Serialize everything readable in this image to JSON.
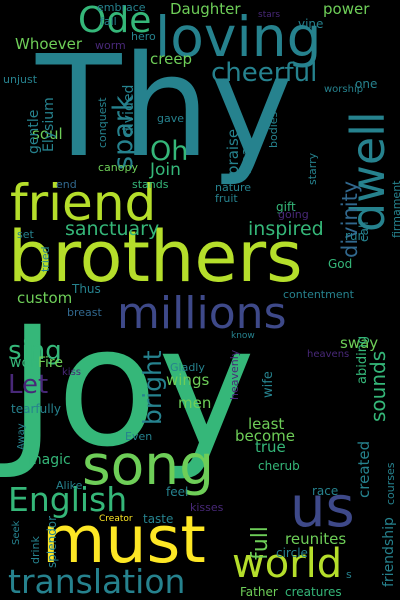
{
  "background": "#000000",
  "palette": [
    "#fde725",
    "#b5de2b",
    "#6ece58",
    "#35b779",
    "#1f9e89",
    "#26828e",
    "#31688e",
    "#3e4989",
    "#482878",
    "#440154"
  ],
  "words": [
    {
      "text": "Joy",
      "color": "#35b779"
    },
    {
      "text": "Thy",
      "color": "#26828e"
    },
    {
      "text": "brothers",
      "color": "#b5de2b"
    },
    {
      "text": "loving",
      "color": "#26828e"
    },
    {
      "text": "friend",
      "color": "#b5de2b"
    },
    {
      "text": "must",
      "color": "#fde725"
    },
    {
      "text": "us",
      "color": "#3e4989"
    },
    {
      "text": "song",
      "color": "#6ece58"
    },
    {
      "text": "world",
      "color": "#b5de2b"
    },
    {
      "text": "millions",
      "color": "#3e4989"
    },
    {
      "text": "translation",
      "color": "#26828e"
    },
    {
      "text": "English",
      "color": "#35b779"
    },
    {
      "text": "dwell",
      "color": "#26828e"
    },
    {
      "text": "Ode",
      "color": "#35b779"
    },
    {
      "text": "cheerful",
      "color": "#26828e"
    },
    {
      "text": "spark",
      "color": "#26828e"
    },
    {
      "text": "Oh",
      "color": "#35b779"
    },
    {
      "text": "divinity",
      "color": "#31688e"
    },
    {
      "text": "sanctuary",
      "color": "#35b779"
    },
    {
      "text": "inspired",
      "color": "#35b779"
    },
    {
      "text": "sing",
      "color": "#35b779"
    },
    {
      "text": "Let",
      "color": "#482878"
    },
    {
      "text": "bright",
      "color": "#26828e"
    },
    {
      "text": "sounds",
      "color": "#35b779"
    },
    {
      "text": "full",
      "color": "#6ece58"
    },
    {
      "text": "Daughter",
      "color": "#6ece58"
    },
    {
      "text": "power",
      "color": "#6ece58"
    },
    {
      "text": "Whoever",
      "color": "#6ece58"
    },
    {
      "text": "soul",
      "color": "#6ece58"
    },
    {
      "text": "creep",
      "color": "#6ece58"
    },
    {
      "text": "praise",
      "color": "#26828e"
    },
    {
      "text": "Join",
      "color": "#35b779"
    },
    {
      "text": "custom",
      "color": "#6ece58"
    },
    {
      "text": "sway",
      "color": "#6ece58"
    },
    {
      "text": "wings",
      "color": "#6ece58"
    },
    {
      "text": "men",
      "color": "#6ece58"
    },
    {
      "text": "least",
      "color": "#6ece58"
    },
    {
      "text": "true",
      "color": "#35b779"
    },
    {
      "text": "become",
      "color": "#6ece58"
    },
    {
      "text": "reunites",
      "color": "#6ece58"
    },
    {
      "text": "magic",
      "color": "#35b779"
    },
    {
      "text": "Fire",
      "color": "#6ece58"
    },
    {
      "text": "won",
      "color": "#35b779"
    },
    {
      "text": "tearfully",
      "color": "#26828e"
    },
    {
      "text": "created",
      "color": "#26828e"
    },
    {
      "text": "wife",
      "color": "#26828e"
    },
    {
      "text": "abiding",
      "color": "#35b779"
    },
    {
      "text": "friendship",
      "color": "#26828e"
    },
    {
      "text": "divided",
      "color": "#26828e"
    },
    {
      "text": "gentle",
      "color": "#26828e"
    },
    {
      "text": "Elysium",
      "color": "#26828e"
    },
    {
      "text": "tread",
      "color": "#26828e"
    },
    {
      "text": "God",
      "color": "#35b779"
    },
    {
      "text": "call",
      "color": "#26828e"
    },
    {
      "text": "run",
      "color": "#26828e"
    },
    {
      "text": "one",
      "color": "#26828e"
    },
    {
      "text": "gift",
      "color": "#35b779"
    },
    {
      "text": "fruit",
      "color": "#26828e"
    },
    {
      "text": "nature",
      "color": "#26828e"
    },
    {
      "text": "stands",
      "color": "#35b779"
    },
    {
      "text": "end",
      "color": "#31688e"
    },
    {
      "text": "canopy",
      "color": "#6ece58"
    },
    {
      "text": "conquest",
      "color": "#26828e"
    },
    {
      "text": "gave",
      "color": "#26828e"
    },
    {
      "text": "bodies",
      "color": "#26828e"
    },
    {
      "text": "starry",
      "color": "#26828e"
    },
    {
      "text": "firmament",
      "color": "#26828e"
    },
    {
      "text": "going",
      "color": "#482878"
    },
    {
      "text": "set",
      "color": "#26828e"
    },
    {
      "text": "tried",
      "color": "#26828e"
    },
    {
      "text": "Thus",
      "color": "#26828e"
    },
    {
      "text": "contentment",
      "color": "#26828e"
    },
    {
      "text": "breast",
      "color": "#31688e"
    },
    {
      "text": "kiss",
      "color": "#482878"
    },
    {
      "text": "Gladly",
      "color": "#26828e"
    },
    {
      "text": "know",
      "color": "#26828e"
    },
    {
      "text": "heavenly",
      "color": "#482878"
    },
    {
      "text": "heavens",
      "color": "#482878"
    },
    {
      "text": "Away",
      "color": "#26828e"
    },
    {
      "text": "Even",
      "color": "#26828e"
    },
    {
      "text": "cherub",
      "color": "#35b779"
    },
    {
      "text": "courses",
      "color": "#26828e"
    },
    {
      "text": "Alike",
      "color": "#26828e"
    },
    {
      "text": "feel",
      "color": "#26828e"
    },
    {
      "text": "kisses",
      "color": "#482878"
    },
    {
      "text": "race",
      "color": "#26828e"
    },
    {
      "text": "Seek",
      "color": "#26828e"
    },
    {
      "text": "drink",
      "color": "#26828e"
    },
    {
      "text": "splendor",
      "color": "#26828e"
    },
    {
      "text": "Creator",
      "color": "#fde725"
    },
    {
      "text": "taste",
      "color": "#26828e"
    },
    {
      "text": "circle",
      "color": "#26828e"
    },
    {
      "text": "s",
      "color": "#26828e"
    },
    {
      "text": "Father",
      "color": "#6ece58"
    },
    {
      "text": "creatures",
      "color": "#35b779"
    },
    {
      "text": "embrace",
      "color": "#26828e"
    },
    {
      "text": "fall",
      "color": "#26828e"
    },
    {
      "text": "hero",
      "color": "#26828e"
    },
    {
      "text": "worm",
      "color": "#482878"
    },
    {
      "text": "stars",
      "color": "#482878"
    },
    {
      "text": "vine",
      "color": "#26828e"
    },
    {
      "text": "worship",
      "color": "#26828e"
    },
    {
      "text": "unjust",
      "color": "#26828e"
    }
  ]
}
